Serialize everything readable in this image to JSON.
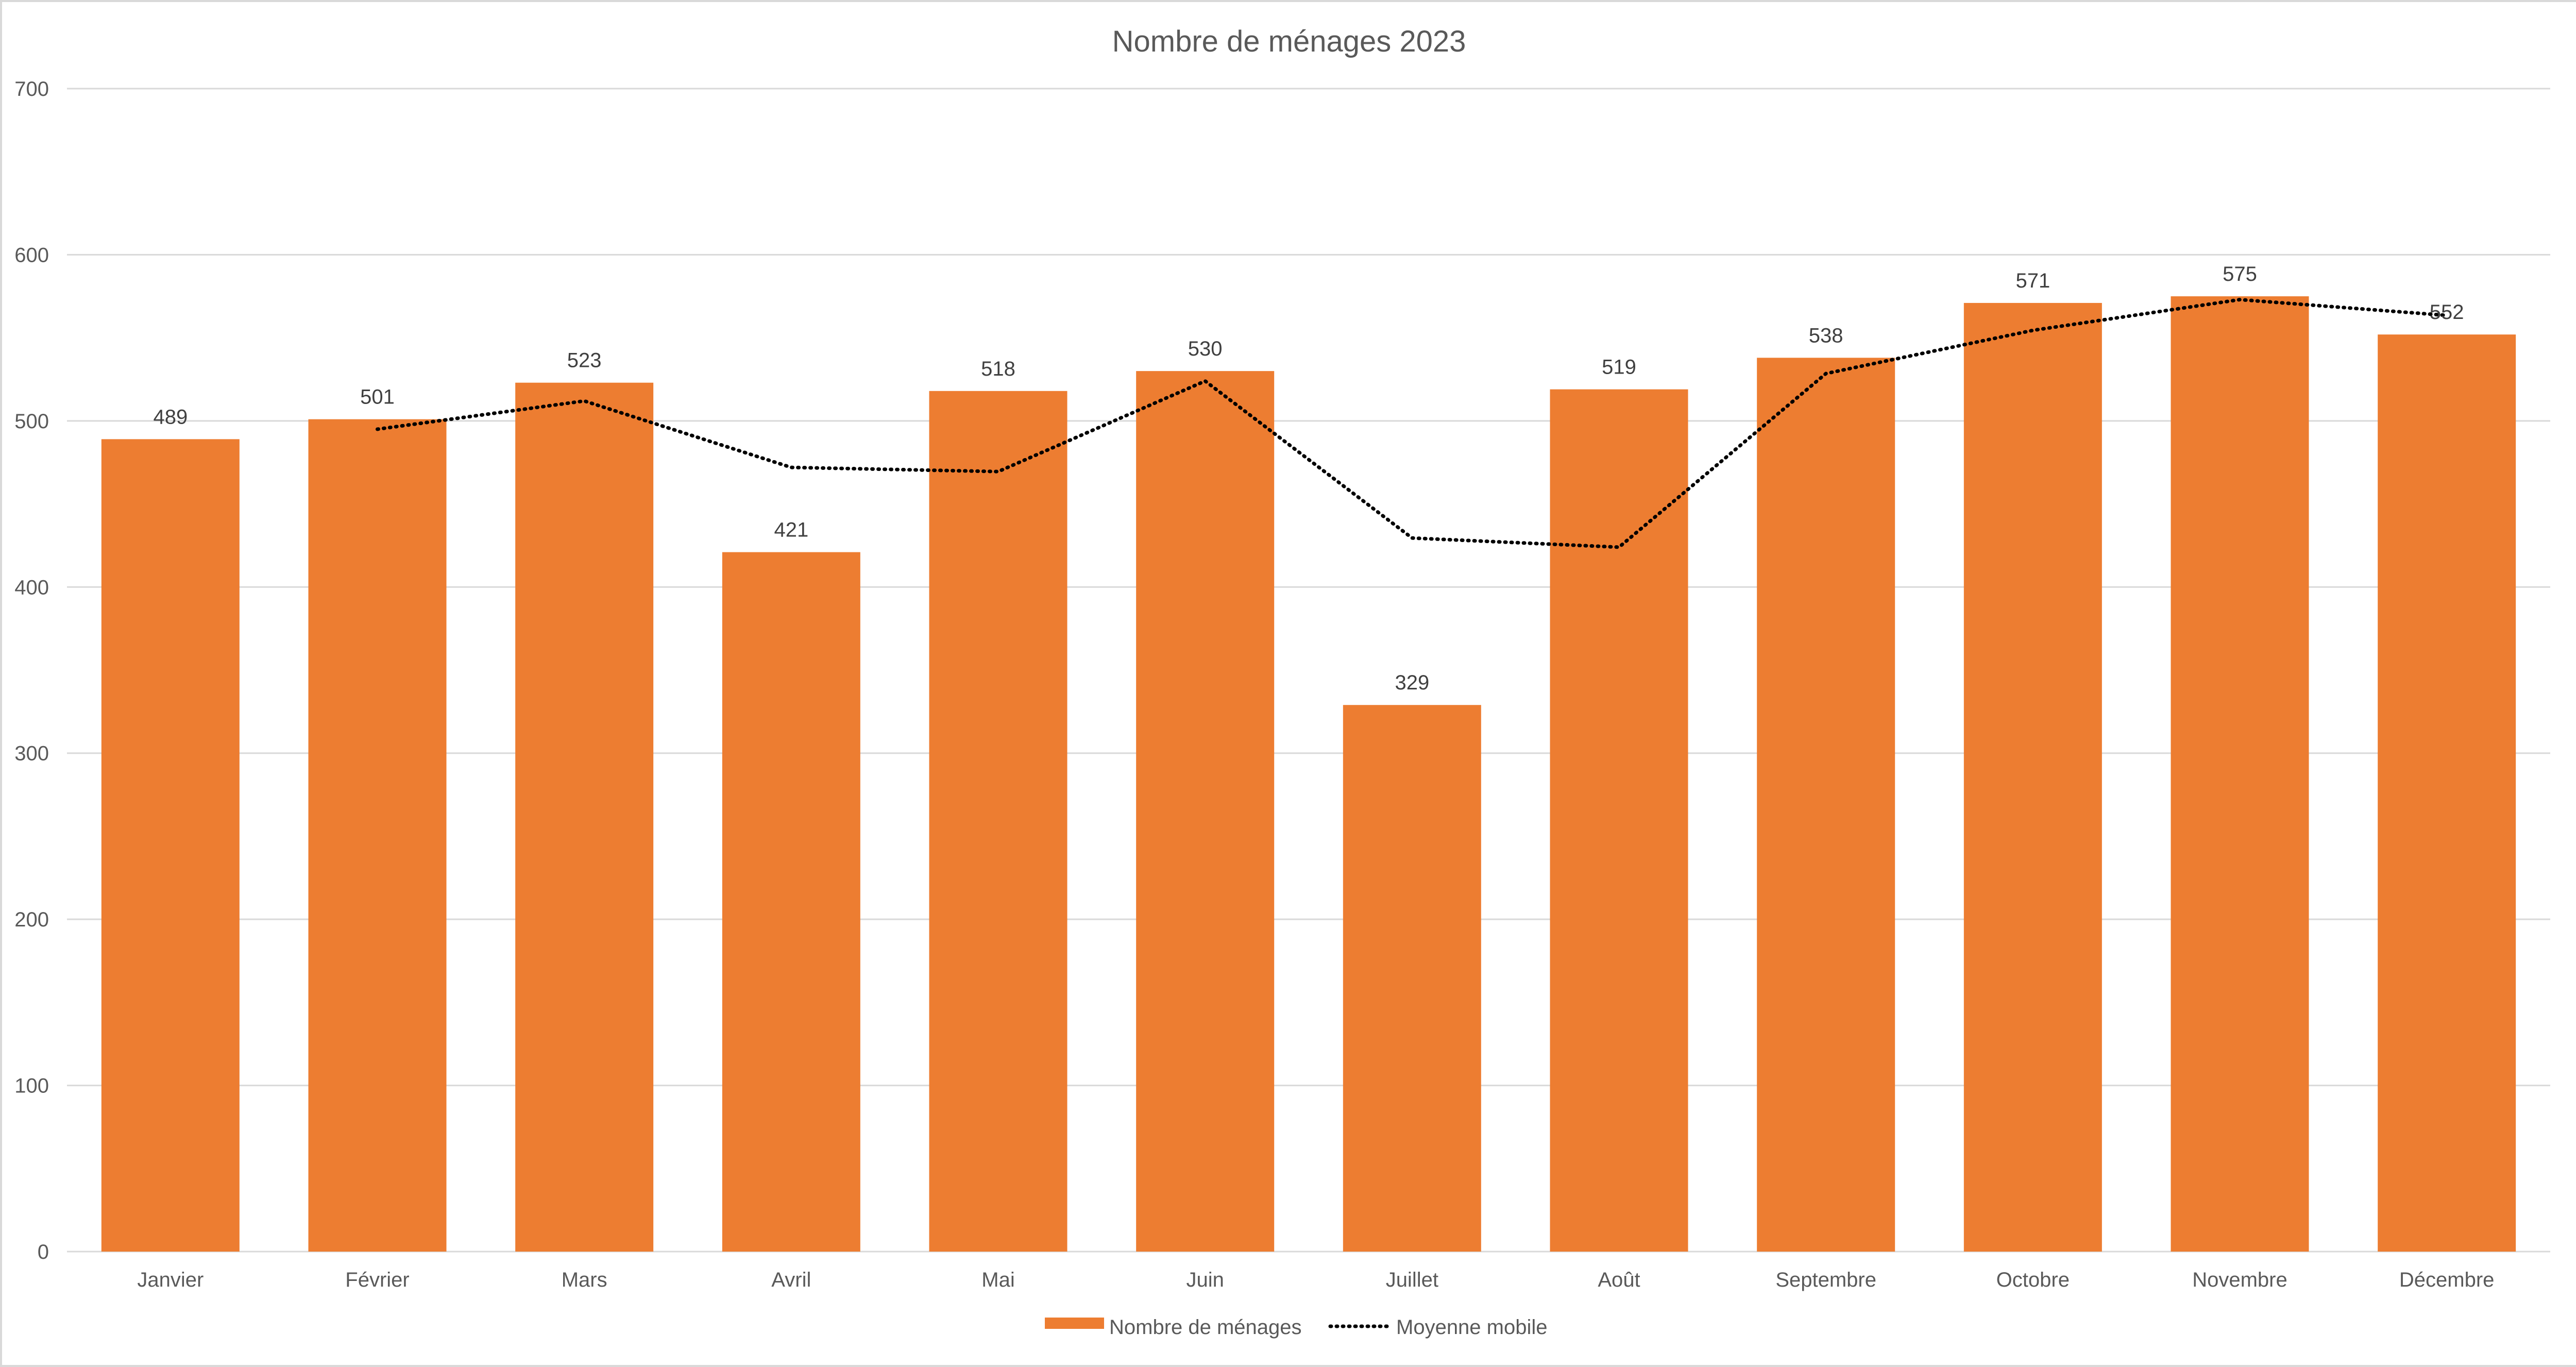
{
  "chart_data": {
    "type": "bar",
    "title": "Nombre de ménages 2023",
    "xlabel": "",
    "ylabel": "",
    "ylim": [
      0,
      700
    ],
    "yticks": [
      0,
      100,
      200,
      300,
      400,
      500,
      600,
      700
    ],
    "grid": true,
    "legend_position": "bottom",
    "categories": [
      "Janvier",
      "Février",
      "Mars",
      "Avril",
      "Mai",
      "Juin",
      "Juillet",
      "Août",
      "Septembre",
      "Octobre",
      "Novembre",
      "Décembre"
    ],
    "series": [
      {
        "name": "Nombre de ménages",
        "type": "bar",
        "color": "#ED7D31",
        "values": [
          489,
          501,
          523,
          421,
          518,
          530,
          329,
          519,
          538,
          571,
          575,
          552
        ],
        "data_labels": true
      },
      {
        "name": "Moyenne mobile",
        "type": "line",
        "style": "dotted",
        "color": "#000000",
        "values": [
          null,
          495,
          512,
          472,
          469.5,
          524,
          429.5,
          424,
          528.5,
          554.5,
          573,
          563.5
        ]
      }
    ]
  }
}
